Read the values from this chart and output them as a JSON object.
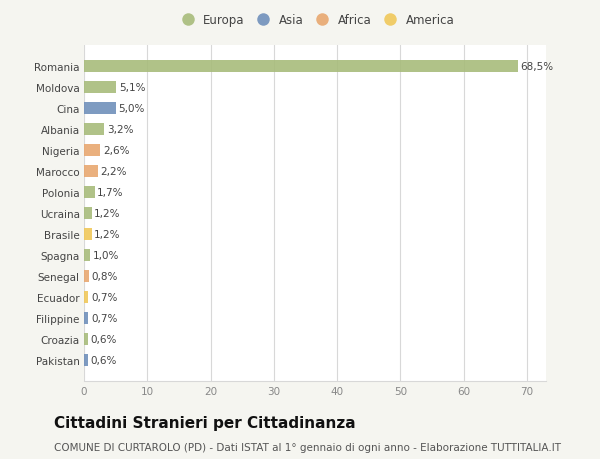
{
  "countries": [
    "Romania",
    "Moldova",
    "Cina",
    "Albania",
    "Nigeria",
    "Marocco",
    "Polonia",
    "Ucraina",
    "Brasile",
    "Spagna",
    "Senegal",
    "Ecuador",
    "Filippine",
    "Croazia",
    "Pakistan"
  ],
  "values": [
    68.5,
    5.1,
    5.0,
    3.2,
    2.6,
    2.2,
    1.7,
    1.2,
    1.2,
    1.0,
    0.8,
    0.7,
    0.7,
    0.6,
    0.6
  ],
  "labels": [
    "68,5%",
    "5,1%",
    "5,0%",
    "3,2%",
    "2,6%",
    "2,2%",
    "1,7%",
    "1,2%",
    "1,2%",
    "1,0%",
    "0,8%",
    "0,7%",
    "0,7%",
    "0,6%",
    "0,6%"
  ],
  "continents": [
    "Europa",
    "Europa",
    "Asia",
    "Europa",
    "Africa",
    "Africa",
    "Europa",
    "Europa",
    "America",
    "Europa",
    "Africa",
    "America",
    "Asia",
    "Europa",
    "Asia"
  ],
  "continent_colors": {
    "Europa": "#a8bc7b",
    "Asia": "#7090bb",
    "Africa": "#e8a870",
    "America": "#f0c85a"
  },
  "legend_order": [
    "Europa",
    "Asia",
    "Africa",
    "America"
  ],
  "xlim": [
    0,
    73
  ],
  "xticks": [
    0,
    10,
    20,
    30,
    40,
    50,
    60,
    70
  ],
  "title": "Cittadini Stranieri per Cittadinanza",
  "subtitle": "COMUNE DI CURTAROLO (PD) - Dati ISTAT al 1° gennaio di ogni anno - Elaborazione TUTTITALIA.IT",
  "background_color": "#f5f5f0",
  "bar_background": "#ffffff",
  "grid_color": "#d8d8d8",
  "title_fontsize": 11,
  "subtitle_fontsize": 7.5,
  "label_fontsize": 7.5,
  "tick_fontsize": 7.5,
  "legend_fontsize": 8.5
}
